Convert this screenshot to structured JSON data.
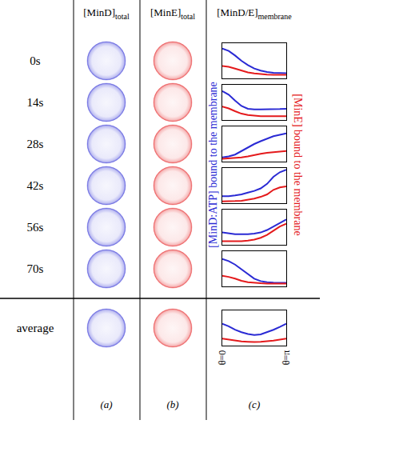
{
  "figure": {
    "row_labels": [
      "0s",
      "14s",
      "28s",
      "42s",
      "56s",
      "70s",
      "average"
    ],
    "columns": [
      {
        "header": "[MinD]",
        "subscript": "total",
        "letter": "(a)",
        "color": "#2a2ad4"
      },
      {
        "header": "[MinE]",
        "subscript": "total",
        "letter": "(b)",
        "color": "#e41a1c"
      },
      {
        "header": "[MinD/E]",
        "subscript": "membrane",
        "letter": "(c)"
      }
    ],
    "y_labels": [
      {
        "text": "[MinD:ATP] bound to the membrane",
        "color": "#2a2ad4"
      },
      {
        "text": "[MinE] bound to the membrane",
        "color": "#e41a1c"
      }
    ]
  },
  "chart_data": [
    {
      "type": "line",
      "x": [
        0,
        0.314,
        0.628,
        0.942,
        1.257,
        1.571,
        1.885,
        2.199,
        2.513,
        2.827,
        3.142
      ],
      "xlim": [
        0,
        3.142
      ],
      "ylim": [
        0,
        1
      ],
      "tick_labels": false,
      "series": [
        {
          "color": "#2a2ad4",
          "values": [
            0.85,
            0.78,
            0.65,
            0.5,
            0.38,
            0.28,
            0.22,
            0.18,
            0.16,
            0.15,
            0.15
          ]
        },
        {
          "color": "#e41a1c",
          "values": [
            0.35,
            0.33,
            0.28,
            0.22,
            0.17,
            0.14,
            0.12,
            0.11,
            0.1,
            0.1,
            0.1
          ]
        }
      ]
    },
    {
      "type": "line",
      "x": [
        0,
        0.314,
        0.628,
        0.942,
        1.257,
        1.571,
        1.885,
        2.199,
        2.513,
        2.827,
        3.142
      ],
      "xlim": [
        0,
        3.142
      ],
      "ylim": [
        0,
        1
      ],
      "tick_labels": false,
      "series": [
        {
          "color": "#2a2ad4",
          "values": [
            0.82,
            0.72,
            0.55,
            0.4,
            0.32,
            0.3,
            0.3,
            0.3,
            0.3,
            0.31,
            0.32
          ]
        },
        {
          "color": "#e41a1c",
          "values": [
            0.38,
            0.33,
            0.25,
            0.18,
            0.14,
            0.12,
            0.11,
            0.11,
            0.11,
            0.11,
            0.11
          ]
        }
      ]
    },
    {
      "type": "line",
      "x": [
        0,
        0.314,
        0.628,
        0.942,
        1.257,
        1.571,
        1.885,
        2.199,
        2.513,
        2.827,
        3.142
      ],
      "xlim": [
        0,
        3.142
      ],
      "ylim": [
        0,
        1
      ],
      "tick_labels": false,
      "series": [
        {
          "color": "#2a2ad4",
          "values": [
            0.12,
            0.15,
            0.2,
            0.3,
            0.4,
            0.5,
            0.58,
            0.65,
            0.72,
            0.76,
            0.8
          ]
        },
        {
          "color": "#e41a1c",
          "values": [
            0.08,
            0.09,
            0.1,
            0.12,
            0.15,
            0.19,
            0.22,
            0.25,
            0.27,
            0.28,
            0.3
          ]
        }
      ]
    },
    {
      "type": "line",
      "x": [
        0,
        0.314,
        0.628,
        0.942,
        1.257,
        1.571,
        1.885,
        2.199,
        2.513,
        2.827,
        3.142
      ],
      "xlim": [
        0,
        3.142
      ],
      "ylim": [
        0,
        1
      ],
      "tick_labels": false,
      "series": [
        {
          "color": "#2a2ad4",
          "values": [
            0.2,
            0.2,
            0.22,
            0.25,
            0.3,
            0.35,
            0.42,
            0.55,
            0.75,
            0.88,
            0.95
          ]
        },
        {
          "color": "#e41a1c",
          "values": [
            0.05,
            0.05,
            0.06,
            0.07,
            0.1,
            0.13,
            0.18,
            0.25,
            0.38,
            0.45,
            0.48
          ]
        }
      ]
    },
    {
      "type": "line",
      "x": [
        0,
        0.314,
        0.628,
        0.942,
        1.257,
        1.571,
        1.885,
        2.199,
        2.513,
        2.827,
        3.142
      ],
      "xlim": [
        0,
        3.142
      ],
      "ylim": [
        0,
        1
      ],
      "tick_labels": false,
      "series": [
        {
          "color": "#2a2ad4",
          "values": [
            0.35,
            0.32,
            0.3,
            0.3,
            0.3,
            0.32,
            0.35,
            0.42,
            0.52,
            0.62,
            0.72
          ]
        },
        {
          "color": "#e41a1c",
          "values": [
            0.1,
            0.1,
            0.1,
            0.1,
            0.12,
            0.15,
            0.2,
            0.28,
            0.4,
            0.52,
            0.6
          ]
        }
      ]
    },
    {
      "type": "line",
      "x": [
        0,
        0.314,
        0.628,
        0.942,
        1.257,
        1.571,
        1.885,
        2.199,
        2.513,
        2.827,
        3.142
      ],
      "xlim": [
        0,
        3.142
      ],
      "ylim": [
        0,
        1
      ],
      "tick_labels": false,
      "series": [
        {
          "color": "#2a2ad4",
          "values": [
            0.78,
            0.72,
            0.62,
            0.48,
            0.35,
            0.22,
            0.15,
            0.12,
            0.11,
            0.1,
            0.1
          ]
        },
        {
          "color": "#e41a1c",
          "values": [
            0.3,
            0.27,
            0.22,
            0.16,
            0.12,
            0.1,
            0.09,
            0.08,
            0.08,
            0.08,
            0.08
          ]
        }
      ]
    },
    {
      "type": "line",
      "x": [
        0,
        0.314,
        0.628,
        0.942,
        1.257,
        1.571,
        1.885,
        2.199,
        2.513,
        2.827,
        3.142
      ],
      "xlim": [
        0,
        3.142
      ],
      "ylim": [
        0,
        1
      ],
      "tick_labels": "x",
      "xticks": [
        {
          "value": 0,
          "label": "θ=0"
        },
        {
          "value": 3.142,
          "label": "θ=π"
        }
      ],
      "series": [
        {
          "color": "#2a2ad4",
          "values": [
            0.62,
            0.55,
            0.45,
            0.38,
            0.33,
            0.3,
            0.32,
            0.38,
            0.45,
            0.53,
            0.62
          ]
        },
        {
          "color": "#e41a1c",
          "values": [
            0.2,
            0.17,
            0.14,
            0.12,
            0.11,
            0.1,
            0.11,
            0.12,
            0.14,
            0.17,
            0.2
          ]
        }
      ]
    }
  ]
}
